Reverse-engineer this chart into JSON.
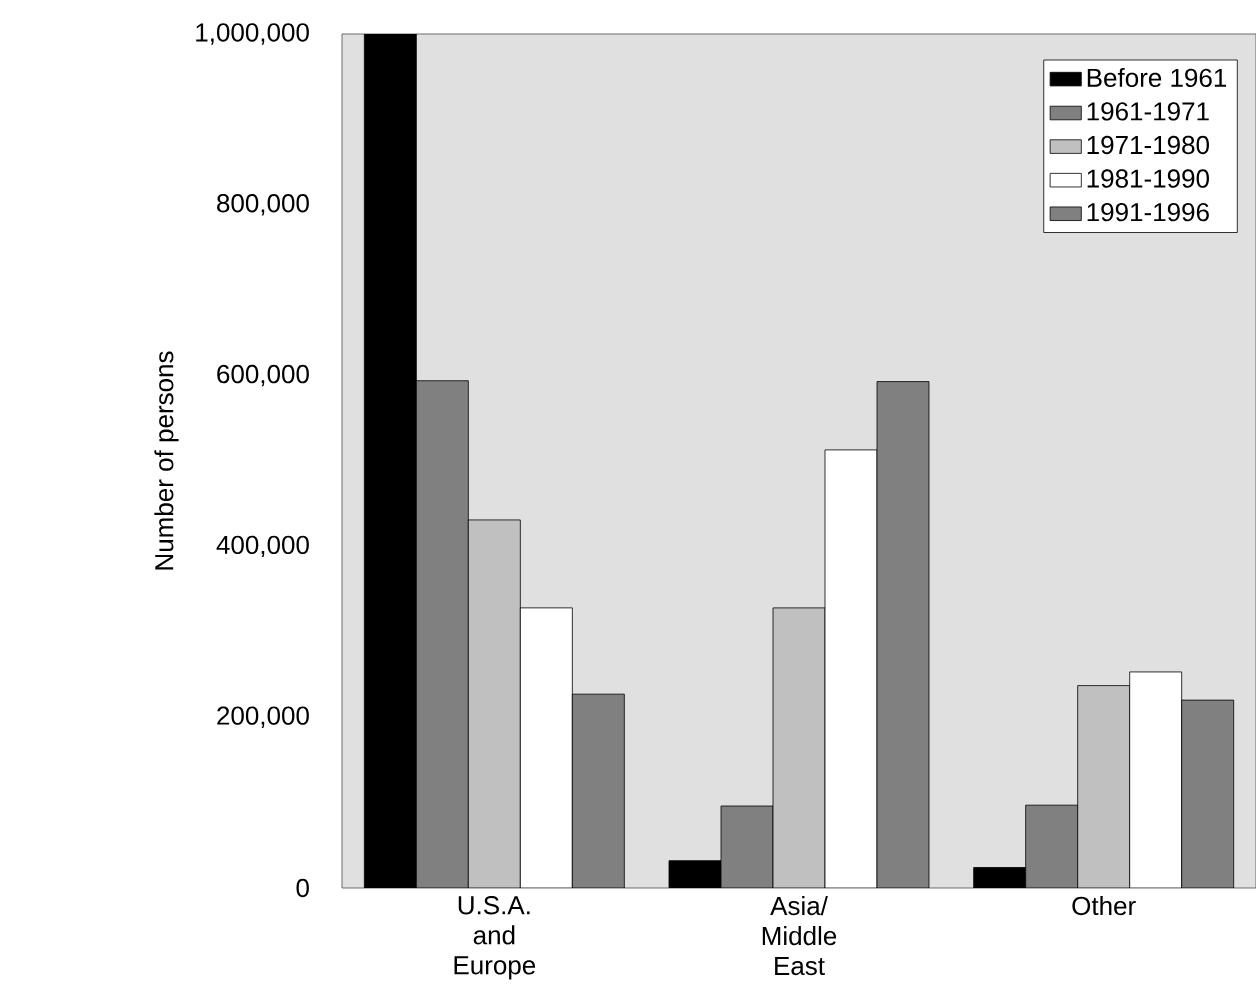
{
  "chart_data": {
    "type": "bar",
    "ylabel": "Number of persons",
    "categories": [
      "U.S.A. and Europe",
      "Asia/ Middle East",
      "Other"
    ],
    "series": [
      {
        "name": "Before 1961",
        "color": "#000000",
        "values": [
          1000000,
          32000,
          24000
        ]
      },
      {
        "name": "1961-1971",
        "color": "#808080",
        "values": [
          594000,
          96000,
          97000
        ]
      },
      {
        "name": "1971-1980",
        "color": "#c0c0c0",
        "values": [
          431000,
          328000,
          237000
        ]
      },
      {
        "name": "1981-1990",
        "color": "#ffffff",
        "values": [
          328000,
          513000,
          253000
        ]
      },
      {
        "name": "1991-1996",
        "color": "#808080",
        "values": [
          227000,
          593000,
          220000
        ]
      }
    ],
    "ylim": [
      0,
      1000000
    ],
    "yticks": [
      {
        "value": 0,
        "label": "0"
      },
      {
        "value": 200000,
        "label": "200,000"
      },
      {
        "value": 400000,
        "label": "400,000"
      },
      {
        "value": 600000,
        "label": "600,000"
      },
      {
        "value": 800000,
        "label": "800,000"
      },
      {
        "value": 1000000,
        "label": "1,000,000"
      }
    ],
    "grid": false,
    "legend": "top right"
  }
}
